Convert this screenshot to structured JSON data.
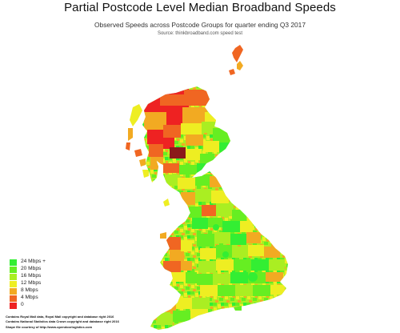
{
  "title": "Partial Postcode Level Median Broadband Speeds",
  "subtitle": "Observed Speeds across Postcode Groups for quarter ending Q3 2017",
  "source": "Source: thinkbroadband.com speed test",
  "legend": [
    {
      "label": "24 Mbps +",
      "color": "#33ee33"
    },
    {
      "label": "20 Mbps",
      "color": "#66ee22"
    },
    {
      "label": "16 Mbps",
      "color": "#aaee22"
    },
    {
      "label": "12 Mbps",
      "color": "#eeee22"
    },
    {
      "label": "8 Mbps",
      "color": "#f2aa22"
    },
    {
      "label": "4 Mbps",
      "color": "#f06622"
    },
    {
      "label": "0",
      "color": "#ee2222"
    }
  ],
  "credits": [
    "Contains Royal Mail data, Royal Mail copyright and database right 2016",
    "Contains National Statistics data Crown copyright and database right 2016",
    "Shape file courtesy of http://www.opendoorlogistics.com"
  ],
  "map": {
    "land_colors": [
      "#33ee33",
      "#66ee22",
      "#aaee22",
      "#eeee22",
      "#f2aa22",
      "#f06622",
      "#ee2222"
    ],
    "urban_color": "#33ee33",
    "highland_dark": "#8b1a1a"
  }
}
